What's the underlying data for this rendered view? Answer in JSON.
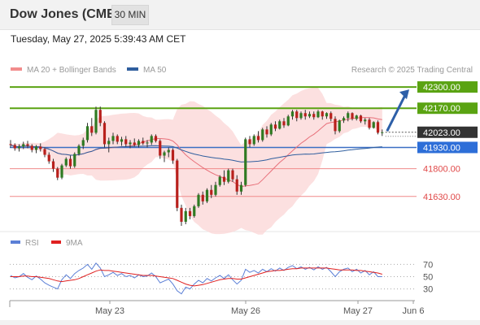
{
  "header": {
    "title": "Dow Jones (CME)",
    "timeframe": "30 MIN"
  },
  "datetime": "Tuesday, May 27, 2025 5:39:43 AM CET",
  "legend": {
    "ma20_label": "MA 20 + Bollinger Bands",
    "ma20_color": "#f28c8c",
    "ma50_label": "MA 50",
    "ma50_color": "#2f5e9e"
  },
  "credit": "Research © 2025 Trading Central",
  "rsi_legend": {
    "rsi_label": "RSI",
    "rsi_color": "#5b7fd6",
    "ma_label": "9MA",
    "ma_color": "#e02020"
  },
  "chart_data": [
    {
      "type": "candlestick",
      "x_tick_labels": [
        "May 23",
        "May 26",
        "May 27",
        "Jun 6"
      ],
      "levels": [
        {
          "label": "42300.00",
          "value": 42300,
          "color": "#5aa312",
          "kind": "resistance"
        },
        {
          "label": "42170.00",
          "value": 42170,
          "color": "#5aa312",
          "kind": "resistance"
        },
        {
          "label": "42023.00",
          "value": 42023,
          "color": "#333333",
          "kind": "last"
        },
        {
          "label": "41930.00",
          "value": 41930,
          "color": "#2d6ed8",
          "kind": "pivot"
        },
        {
          "label": "41800.00",
          "value": 41800,
          "color": "#e04848",
          "kind": "support"
        },
        {
          "label": "41630.00",
          "value": 41630,
          "color": "#e04848",
          "kind": "support"
        }
      ],
      "ylim": [
        41430,
        42360
      ],
      "last_price": 42023,
      "forecast_arrow": {
        "from": 42030,
        "to": 42300,
        "color": "#2d5fa8"
      },
      "candles": [
        [
          41950,
          41975,
          41930,
          41945
        ],
        [
          41945,
          41955,
          41910,
          41925
        ],
        [
          41925,
          41950,
          41905,
          41935
        ],
        [
          41935,
          41965,
          41920,
          41950
        ],
        [
          41950,
          41970,
          41925,
          41940
        ],
        [
          41940,
          41950,
          41900,
          41915
        ],
        [
          41915,
          41945,
          41895,
          41935
        ],
        [
          41935,
          41955,
          41905,
          41920
        ],
        [
          41920,
          41930,
          41870,
          41885
        ],
        [
          41885,
          41900,
          41830,
          41845
        ],
        [
          41845,
          41860,
          41780,
          41800
        ],
        [
          41800,
          41810,
          41730,
          41745
        ],
        [
          41745,
          41830,
          41735,
          41820
        ],
        [
          41820,
          41870,
          41810,
          41860
        ],
        [
          41860,
          41880,
          41800,
          41815
        ],
        [
          41815,
          41900,
          41805,
          41890
        ],
        [
          41890,
          41950,
          41880,
          41940
        ],
        [
          41940,
          41990,
          41920,
          41975
        ],
        [
          41975,
          42080,
          41960,
          42060
        ],
        [
          42060,
          42110,
          42000,
          42020
        ],
        [
          42020,
          42180,
          42010,
          42160
        ],
        [
          42160,
          42180,
          42060,
          42080
        ],
        [
          42080,
          42090,
          41930,
          41950
        ],
        [
          41950,
          41990,
          41900,
          41970
        ],
        [
          41970,
          42020,
          41950,
          42000
        ],
        [
          42000,
          42010,
          41950,
          41965
        ],
        [
          41965,
          41995,
          41940,
          41980
        ],
        [
          41980,
          42000,
          41935,
          41950
        ],
        [
          41950,
          41975,
          41925,
          41960
        ],
        [
          41960,
          41985,
          41935,
          41945
        ],
        [
          41945,
          41980,
          41930,
          41970
        ],
        [
          41970,
          41990,
          41945,
          41955
        ],
        [
          41955,
          41975,
          41930,
          41960
        ],
        [
          41960,
          42010,
          41945,
          42000
        ],
        [
          42000,
          42010,
          41960,
          41970
        ],
        [
          41970,
          41980,
          41860,
          41880
        ],
        [
          41880,
          41910,
          41840,
          41900
        ],
        [
          41900,
          41930,
          41870,
          41915
        ],
        [
          41915,
          41925,
          41830,
          41850
        ],
        [
          41850,
          41860,
          41540,
          41560
        ],
        [
          41560,
          41580,
          41450,
          41475
        ],
        [
          41475,
          41560,
          41460,
          41540
        ],
        [
          41540,
          41560,
          41490,
          41510
        ],
        [
          41510,
          41580,
          41500,
          41570
        ],
        [
          41570,
          41650,
          41560,
          41640
        ],
        [
          41640,
          41660,
          41580,
          41600
        ],
        [
          41600,
          41680,
          41590,
          41670
        ],
        [
          41670,
          41700,
          41620,
          41640
        ],
        [
          41640,
          41720,
          41630,
          41700
        ],
        [
          41700,
          41760,
          41690,
          41750
        ],
        [
          41750,
          41790,
          41700,
          41720
        ],
        [
          41720,
          41800,
          41710,
          41790
        ],
        [
          41790,
          41800,
          41720,
          41735
        ],
        [
          41735,
          41760,
          41640,
          41660
        ],
        [
          41660,
          41720,
          41640,
          41700
        ],
        [
          41700,
          41990,
          41690,
          41980
        ],
        [
          41980,
          42000,
          41930,
          41950
        ],
        [
          41950,
          42010,
          41940,
          42000
        ],
        [
          42000,
          42030,
          41960,
          41975
        ],
        [
          41975,
          42050,
          41965,
          42040
        ],
        [
          42040,
          42060,
          41990,
          42010
        ],
        [
          42010,
          42080,
          42000,
          42070
        ],
        [
          42070,
          42090,
          42030,
          42045
        ],
        [
          42045,
          42100,
          42040,
          42090
        ],
        [
          42090,
          42110,
          42050,
          42065
        ],
        [
          42065,
          42130,
          42060,
          42120
        ],
        [
          42120,
          42160,
          42100,
          42150
        ],
        [
          42150,
          42160,
          42090,
          42110
        ],
        [
          42110,
          42150,
          42100,
          42140
        ],
        [
          42140,
          42160,
          42100,
          42120
        ],
        [
          42120,
          42150,
          42110,
          42135
        ],
        [
          42135,
          42150,
          42100,
          42115
        ],
        [
          42115,
          42160,
          42110,
          42150
        ],
        [
          42150,
          42155,
          42100,
          42120
        ],
        [
          42120,
          42145,
          42105,
          42140
        ],
        [
          42140,
          42150,
          42090,
          42105
        ],
        [
          42105,
          42120,
          42010,
          42030
        ],
        [
          42030,
          42100,
          42020,
          42095
        ],
        [
          42095,
          42120,
          42080,
          42110
        ],
        [
          42110,
          42150,
          42090,
          42140
        ],
        [
          42140,
          42145,
          42095,
          42105
        ],
        [
          42105,
          42130,
          42095,
          42125
        ],
        [
          42125,
          42130,
          42080,
          42090
        ],
        [
          42090,
          42110,
          42070,
          42100
        ],
        [
          42100,
          42110,
          42040,
          42050
        ],
        [
          42050,
          42090,
          42045,
          42085
        ],
        [
          42085,
          42095,
          42010,
          42020
        ],
        [
          42020,
          42040,
          42000,
          42023
        ]
      ]
    },
    {
      "type": "line",
      "title": "RSI",
      "y_tick_labels": [
        "70",
        "50",
        "30"
      ],
      "y_ticks": [
        70,
        50,
        30
      ],
      "ylim": [
        15,
        85
      ],
      "series": [
        {
          "name": "RSI",
          "color": "#5b7fd6",
          "values": [
            52,
            48,
            50,
            55,
            49,
            45,
            51,
            46,
            40,
            36,
            33,
            30,
            45,
            53,
            47,
            55,
            60,
            64,
            70,
            62,
            72,
            64,
            50,
            53,
            57,
            52,
            55,
            50,
            52,
            48,
            53,
            50,
            51,
            56,
            50,
            40,
            43,
            46,
            38,
            27,
            22,
            33,
            30,
            38,
            44,
            40,
            47,
            43,
            48,
            52,
            47,
            53,
            45,
            38,
            44,
            62,
            57,
            60,
            56,
            62,
            58,
            63,
            59,
            64,
            60,
            65,
            68,
            63,
            66,
            62,
            65,
            61,
            66,
            62,
            65,
            58,
            50,
            58,
            62,
            64,
            58,
            62,
            56,
            60,
            53,
            58,
            50,
            50
          ]
        },
        {
          "name": "9MA",
          "color": "#e02020",
          "values": [
            50,
            50,
            50,
            51,
            51,
            50,
            50,
            49,
            48,
            47,
            45,
            43,
            42,
            43,
            44,
            45,
            47,
            50,
            53,
            56,
            59,
            61,
            60,
            60,
            59,
            58,
            57,
            56,
            55,
            54,
            53,
            52,
            52,
            52,
            51,
            50,
            49,
            48,
            47,
            44,
            41,
            38,
            36,
            35,
            36,
            37,
            39,
            41,
            43,
            45,
            46,
            47,
            47,
            46,
            46,
            48,
            50,
            52,
            54,
            56,
            58,
            59,
            60,
            60,
            61,
            62,
            63,
            63,
            64,
            64,
            64,
            64,
            64,
            64,
            64,
            63,
            62,
            61,
            61,
            61,
            61,
            60,
            60,
            59,
            58,
            57,
            56,
            54
          ]
        }
      ]
    }
  ]
}
